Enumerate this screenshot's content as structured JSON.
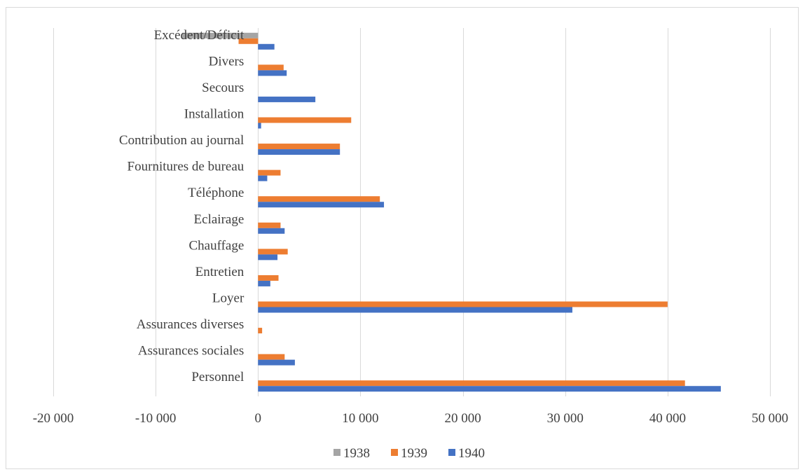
{
  "chart_data": {
    "type": "bar",
    "orientation": "horizontal",
    "categories": [
      "Personnel",
      "Assurances sociales",
      "Assurances diverses",
      "Loyer",
      "Entretien",
      "Chauffage",
      "Eclairage",
      "Téléphone",
      "Fournitures de bureau",
      "Contribution au journal",
      "Installation",
      "Secours",
      "Divers",
      "Excédent/Déficit"
    ],
    "series": [
      {
        "name": "1938",
        "color": "#a5a5a5",
        "values": [
          0,
          0,
          0,
          0,
          0,
          0,
          0,
          0,
          0,
          0,
          0,
          0,
          0,
          -7400
        ]
      },
      {
        "name": "1939",
        "color": "#ed7d31",
        "values": [
          41700,
          2600,
          400,
          40000,
          2000,
          2900,
          2200,
          11900,
          2200,
          8000,
          9100,
          0,
          2500,
          -1900
        ]
      },
      {
        "name": "1940",
        "color": "#4472c4",
        "values": [
          45200,
          3600,
          0,
          30700,
          1200,
          1900,
          2600,
          12300,
          900,
          8000,
          300,
          5600,
          2800,
          1600
        ]
      }
    ],
    "xlim": [
      -20000,
      50000
    ],
    "xticks": [
      -20000,
      -10000,
      0,
      10000,
      20000,
      30000,
      40000,
      50000
    ],
    "xtick_labels": [
      "-20 000",
      "-10 000",
      "0",
      "10 000",
      "20 000",
      "30 000",
      "40 000",
      "50 000"
    ],
    "grid": true,
    "legend_position": "bottom",
    "title": "",
    "xlabel": "",
    "ylabel": ""
  }
}
